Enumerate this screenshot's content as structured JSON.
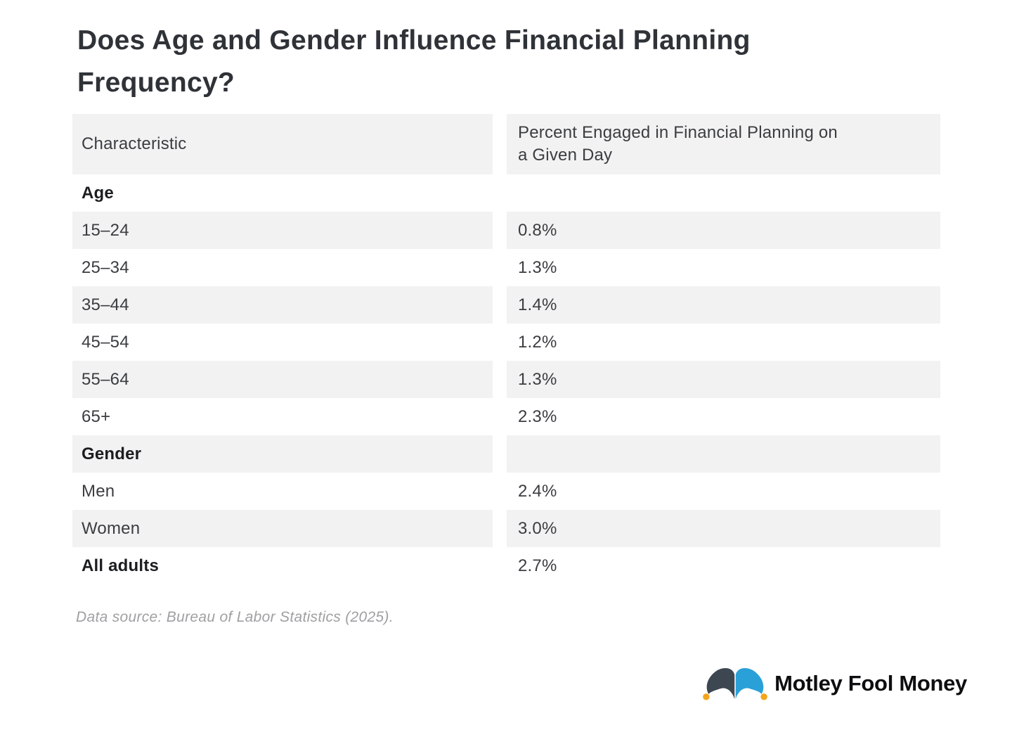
{
  "title": {
    "text": "Does Age and Gender Influence Financial Planning\nFrequency?"
  },
  "table": {
    "columns": [
      "Characteristic",
      "Percent Engaged in Financial Planning on\na Given Day"
    ],
    "rows": [
      {
        "label": "Age",
        "value": "",
        "bold": true,
        "shaded": false
      },
      {
        "label": "15–24",
        "value": "0.8%",
        "bold": false,
        "shaded": true
      },
      {
        "label": "25–34",
        "value": "1.3%",
        "bold": false,
        "shaded": false
      },
      {
        "label": "35–44",
        "value": "1.4%",
        "bold": false,
        "shaded": true
      },
      {
        "label": "45–54",
        "value": "1.2%",
        "bold": false,
        "shaded": false
      },
      {
        "label": "55–64",
        "value": "1.3%",
        "bold": false,
        "shaded": true
      },
      {
        "label": "65+",
        "value": "2.3%",
        "bold": false,
        "shaded": false
      },
      {
        "label": "Gender",
        "value": "",
        "bold": true,
        "shaded": true
      },
      {
        "label": "Men",
        "value": "2.4%",
        "bold": false,
        "shaded": false
      },
      {
        "label": "Women",
        "value": "3.0%",
        "bold": false,
        "shaded": true
      },
      {
        "label": "All adults",
        "value": "2.7%",
        "bold": true,
        "shaded": false
      }
    ]
  },
  "source": {
    "text": "Data source: Bureau of Labor Statistics (2025)."
  },
  "branding": {
    "name": "Motley Fool Money",
    "icon": "jester-hat-icon"
  },
  "colors": {
    "shaded_row": "#f2f2f2",
    "title_text": "#2f3237",
    "hat_dark": "#3d4751",
    "hat_blue": "#2aa0d8",
    "hat_bell": "#f2a51d",
    "logo_text": "#0d0e10"
  },
  "chart_data": {
    "type": "table",
    "title": "Does Age and Gender Influence Financial Planning Frequency?",
    "columns": [
      "Characteristic",
      "Percent Engaged in Financial Planning on a Given Day"
    ],
    "unit": "%",
    "groups": [
      {
        "name": "Age",
        "categories": [
          "15–24",
          "25–34",
          "35–44",
          "45–54",
          "55–64",
          "65+"
        ],
        "values": [
          0.8,
          1.3,
          1.4,
          1.2,
          1.3,
          2.3
        ]
      },
      {
        "name": "Gender",
        "categories": [
          "Men",
          "Women"
        ],
        "values": [
          2.4,
          3.0
        ]
      }
    ],
    "totals": {
      "categories": [
        "All adults"
      ],
      "values": [
        2.7
      ]
    },
    "source": "Data source: Bureau of Labor Statistics (2025)."
  }
}
